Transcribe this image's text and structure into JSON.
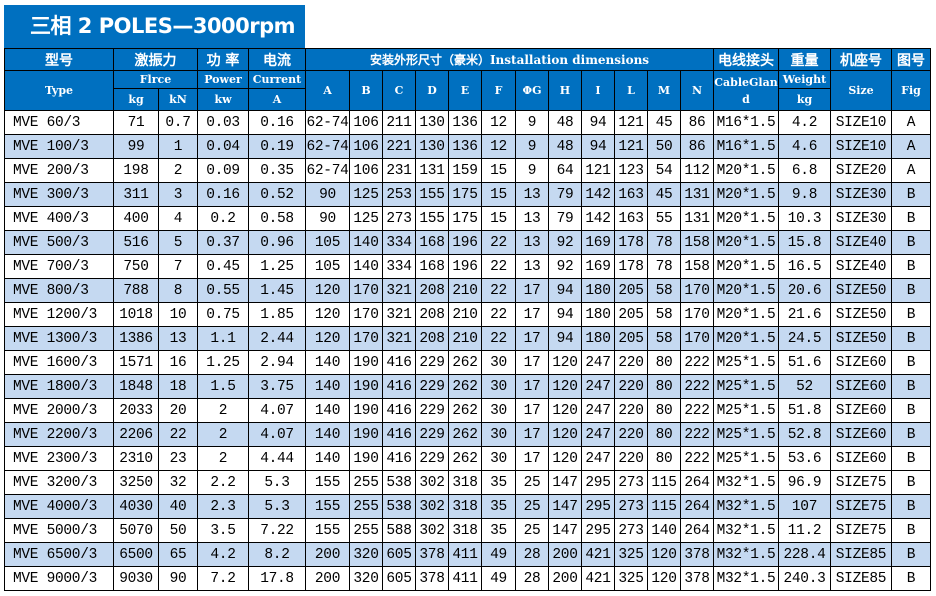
{
  "title": "三相 2 POLES—3000rpm",
  "colors": {
    "header_bg": "#0070C0",
    "shaded_row": "#C5D9F1"
  },
  "header": {
    "type_zh": "型号",
    "type_en": "Type",
    "force_zh": "激振力",
    "force_en": "Flrce",
    "force_kg": "kg",
    "force_kn": "kN",
    "power_zh": "功 率",
    "power_en": "Power",
    "power_unit": "kw",
    "current_zh": "电流",
    "current_en": "Current",
    "current_unit": "A",
    "dims": "安装外形尺寸（豪米）Installation dimensions",
    "dim_cols": [
      "A",
      "B",
      "C",
      "D",
      "E",
      "F",
      "ΦG",
      "H",
      "I",
      "L",
      "M",
      "N"
    ],
    "cable_zh": "电线接头",
    "cable_en": "CableGland",
    "weight_zh": "重量",
    "weight_en": "Weight",
    "weight_unit": "kg",
    "size_zh": "机座号",
    "size_en": "Size",
    "fig_zh": "图号",
    "fig_en": "Fig"
  },
  "rows": [
    {
      "shaded": false,
      "c": [
        "MVE 60/3",
        "71",
        "0.7",
        "0.03",
        "0.16",
        "62-74",
        "106",
        "211",
        "130",
        "136",
        "12",
        "9",
        "48",
        "94",
        "121",
        "45",
        "86",
        "M16*1.5",
        "4.2",
        "SIZE10",
        "A"
      ]
    },
    {
      "shaded": true,
      "c": [
        "MVE 100/3",
        "99",
        "1",
        "0.04",
        "0.19",
        "62-74",
        "106",
        "221",
        "130",
        "136",
        "12",
        "9",
        "48",
        "94",
        "121",
        "50",
        "86",
        "M16*1.5",
        "4.6",
        "SIZE10",
        "A"
      ]
    },
    {
      "shaded": false,
      "c": [
        "MVE 200/3",
        "198",
        "2",
        "0.09",
        "0.35",
        "62-74",
        "106",
        "231",
        "131",
        "159",
        "15",
        "9",
        "64",
        "121",
        "123",
        "54",
        "112",
        "M20*1.5",
        "6.8",
        "SIZE20",
        "A"
      ]
    },
    {
      "shaded": true,
      "c": [
        "MVE 300/3",
        "311",
        "3",
        "0.16",
        "0.52",
        "90",
        "125",
        "253",
        "155",
        "175",
        "15",
        "13",
        "79",
        "142",
        "163",
        "45",
        "131",
        "M20*1.5",
        "9.8",
        "SIZE30",
        "B"
      ]
    },
    {
      "shaded": false,
      "c": [
        "MVE 400/3",
        "400",
        "4",
        "0.2",
        "0.58",
        "90",
        "125",
        "273",
        "155",
        "175",
        "15",
        "13",
        "79",
        "142",
        "163",
        "55",
        "131",
        "M20*1.5",
        "10.3",
        "SIZE30",
        "B"
      ]
    },
    {
      "shaded": true,
      "c": [
        "MVE 500/3",
        "516",
        "5",
        "0.37",
        "0.96",
        "105",
        "140",
        "334",
        "168",
        "196",
        "22",
        "13",
        "92",
        "169",
        "178",
        "78",
        "158",
        "M20*1.5",
        "15.8",
        "SIZE40",
        "B"
      ]
    },
    {
      "shaded": false,
      "c": [
        "MVE 700/3",
        "750",
        "7",
        "0.45",
        "1.25",
        "105",
        "140",
        "334",
        "168",
        "196",
        "22",
        "13",
        "92",
        "169",
        "178",
        "78",
        "158",
        "M20*1.5",
        "16.5",
        "SIZE40",
        "B"
      ]
    },
    {
      "shaded": true,
      "c": [
        "MVE 800/3",
        "788",
        "8",
        "0.55",
        "1.45",
        "120",
        "170",
        "321",
        "208",
        "210",
        "22",
        "17",
        "94",
        "180",
        "205",
        "58",
        "170",
        "M20*1.5",
        "20.6",
        "SIZE50",
        "B"
      ]
    },
    {
      "shaded": false,
      "c": [
        "MVE 1200/3",
        "1018",
        "10",
        "0.75",
        "1.85",
        "120",
        "170",
        "321",
        "208",
        "210",
        "22",
        "17",
        "94",
        "180",
        "205",
        "58",
        "170",
        "M20*1.5",
        "21.6",
        "SIZE50",
        "B"
      ]
    },
    {
      "shaded": true,
      "c": [
        "MVE 1300/3",
        "1386",
        "13",
        "1.1",
        "2.44",
        "120",
        "170",
        "321",
        "208",
        "210",
        "22",
        "17",
        "94",
        "180",
        "205",
        "58",
        "170",
        "M20*1.5",
        "24.5",
        "SIZE50",
        "B"
      ]
    },
    {
      "shaded": false,
      "c": [
        "MVE 1600/3",
        "1571",
        "16",
        "1.25",
        "2.94",
        "140",
        "190",
        "416",
        "229",
        "262",
        "30",
        "17",
        "120",
        "247",
        "220",
        "80",
        "222",
        "M25*1.5",
        "51.6",
        "SIZE60",
        "B"
      ]
    },
    {
      "shaded": true,
      "c": [
        "MVE 1800/3",
        "1848",
        "18",
        "1.5",
        "3.75",
        "140",
        "190",
        "416",
        "229",
        "262",
        "30",
        "17",
        "120",
        "247",
        "220",
        "80",
        "222",
        "M25*1.5",
        "52",
        "SIZE60",
        "B"
      ]
    },
    {
      "shaded": false,
      "c": [
        "MVE 2000/3",
        "2033",
        "20",
        "2",
        "4.07",
        "140",
        "190",
        "416",
        "229",
        "262",
        "30",
        "17",
        "120",
        "247",
        "220",
        "80",
        "222",
        "M25*1.5",
        "51.8",
        "SIZE60",
        "B"
      ]
    },
    {
      "shaded": true,
      "c": [
        "MVE 2200/3",
        "2206",
        "22",
        "2",
        "4.07",
        "140",
        "190",
        "416",
        "229",
        "262",
        "30",
        "17",
        "120",
        "247",
        "220",
        "80",
        "222",
        "M25*1.5",
        "52.8",
        "SIZE60",
        "B"
      ]
    },
    {
      "shaded": false,
      "c": [
        "MVE 2300/3",
        "2310",
        "23",
        "2",
        "4.44",
        "140",
        "190",
        "416",
        "229",
        "262",
        "30",
        "17",
        "120",
        "247",
        "220",
        "80",
        "222",
        "M25*1.5",
        "53.6",
        "SIZE60",
        "B"
      ]
    },
    {
      "shaded": false,
      "c": [
        "MVE 3200/3",
        "3250",
        "32",
        "2.2",
        "5.3",
        "155",
        "255",
        "538",
        "302",
        "318",
        "35",
        "25",
        "147",
        "295",
        "273",
        "115",
        "264",
        "M32*1.5",
        "96.9",
        "SIZE75",
        "B"
      ]
    },
    {
      "shaded": true,
      "c": [
        "MVE 4000/3",
        "4030",
        "40",
        "2.3",
        "5.3",
        "155",
        "255",
        "538",
        "302",
        "318",
        "35",
        "25",
        "147",
        "295",
        "273",
        "115",
        "264",
        "M32*1.5",
        "107",
        "SIZE75",
        "B"
      ]
    },
    {
      "shaded": false,
      "c": [
        "MVE 5000/3",
        "5070",
        "50",
        "3.5",
        "7.22",
        "155",
        "255",
        "588",
        "302",
        "318",
        "35",
        "25",
        "147",
        "295",
        "273",
        "140",
        "264",
        "M32*1.5",
        "11.2",
        "SIZE75",
        "B"
      ]
    },
    {
      "shaded": true,
      "c": [
        "MVE 6500/3",
        "6500",
        "65",
        "4.2",
        "8.2",
        "200",
        "320",
        "605",
        "378",
        "411",
        "49",
        "28",
        "200",
        "421",
        "325",
        "120",
        "378",
        "M32*1.5",
        "228.4",
        "SIZE85",
        "B"
      ]
    },
    {
      "shaded": false,
      "c": [
        "MVE 9000/3",
        "9030",
        "90",
        "7.2",
        "17.8",
        "200",
        "320",
        "605",
        "378",
        "411",
        "49",
        "28",
        "200",
        "421",
        "325",
        "120",
        "378",
        "M32*1.5",
        "240.3",
        "SIZE85",
        "B"
      ]
    }
  ]
}
